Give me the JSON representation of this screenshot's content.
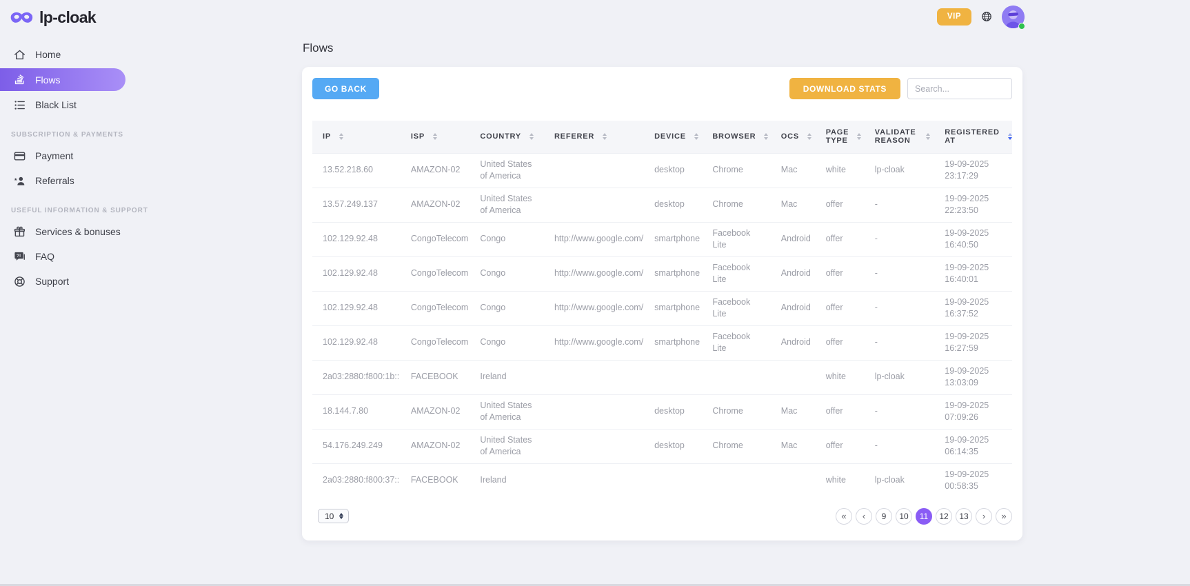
{
  "brand": {
    "name": "lp-cloak"
  },
  "topbar": {
    "vip_label": "VIP"
  },
  "sidebar": {
    "sections": [
      {
        "header": null,
        "items": [
          {
            "label": "Home",
            "icon": "home",
            "active": false
          },
          {
            "label": "Flows",
            "icon": "flows",
            "active": true
          },
          {
            "label": "Black List",
            "icon": "black-list",
            "active": false
          }
        ]
      },
      {
        "header": "SUBSCRIPTION & PAYMENTS",
        "items": [
          {
            "label": "Payment",
            "icon": "payment",
            "active": false
          },
          {
            "label": "Referrals",
            "icon": "referrals",
            "active": false
          }
        ]
      },
      {
        "header": "USEFUL INFORMATION & SUPPORT",
        "items": [
          {
            "label": "Services & bonuses",
            "icon": "gift",
            "active": false
          },
          {
            "label": "FAQ",
            "icon": "faq",
            "active": false
          },
          {
            "label": "Support",
            "icon": "support",
            "active": false
          }
        ]
      }
    ]
  },
  "page": {
    "title": "Flows"
  },
  "toolbar": {
    "go_back_label": "GO BACK",
    "download_stats_label": "DOWNLOAD STATS",
    "search_placeholder": "Search..."
  },
  "table": {
    "columns": [
      {
        "key": "ip",
        "label": "IP",
        "sortable": true
      },
      {
        "key": "isp",
        "label": "ISP",
        "sortable": true
      },
      {
        "key": "country",
        "label": "COUNTRY",
        "sortable": true
      },
      {
        "key": "referer",
        "label": "REFERER",
        "sortable": true
      },
      {
        "key": "device",
        "label": "DEVICE",
        "sortable": true
      },
      {
        "key": "browser",
        "label": "BROWSER",
        "sortable": true
      },
      {
        "key": "ocs",
        "label": "OCS",
        "sortable": true
      },
      {
        "key": "page_type",
        "label": "PAGE TYPE",
        "sortable": true
      },
      {
        "key": "validate_reason",
        "label": "VALIDATE REASON",
        "sortable": true
      },
      {
        "key": "registered_at",
        "label": "REGISTERED AT",
        "sortable": true,
        "sort": "desc"
      }
    ],
    "rows": [
      {
        "ip": "13.52.218.60",
        "isp": "AMAZON-02",
        "country": "United States of America",
        "referer": "",
        "device": "desktop",
        "browser": "Chrome",
        "ocs": "Mac",
        "page_type": "white",
        "validate_reason": "lp-cloak",
        "registered_at": "19-09-2025 23:17:29"
      },
      {
        "ip": "13.57.249.137",
        "isp": "AMAZON-02",
        "country": "United States of America",
        "referer": "",
        "device": "desktop",
        "browser": "Chrome",
        "ocs": "Mac",
        "page_type": "offer",
        "validate_reason": "-",
        "registered_at": "19-09-2025 22:23:50"
      },
      {
        "ip": "102.129.92.48",
        "isp": "CongoTelecom",
        "country": "Congo",
        "referer": "http://www.google.com/",
        "device": "smartphone",
        "browser": "Facebook Lite",
        "ocs": "Android",
        "page_type": "offer",
        "validate_reason": "-",
        "registered_at": "19-09-2025 16:40:50"
      },
      {
        "ip": "102.129.92.48",
        "isp": "CongoTelecom",
        "country": "Congo",
        "referer": "http://www.google.com/",
        "device": "smartphone",
        "browser": "Facebook Lite",
        "ocs": "Android",
        "page_type": "offer",
        "validate_reason": "-",
        "registered_at": "19-09-2025 16:40:01"
      },
      {
        "ip": "102.129.92.48",
        "isp": "CongoTelecom",
        "country": "Congo",
        "referer": "http://www.google.com/",
        "device": "smartphone",
        "browser": "Facebook Lite",
        "ocs": "Android",
        "page_type": "offer",
        "validate_reason": "-",
        "registered_at": "19-09-2025 16:37:52"
      },
      {
        "ip": "102.129.92.48",
        "isp": "CongoTelecom",
        "country": "Congo",
        "referer": "http://www.google.com/",
        "device": "smartphone",
        "browser": "Facebook Lite",
        "ocs": "Android",
        "page_type": "offer",
        "validate_reason": "-",
        "registered_at": "19-09-2025 16:27:59"
      },
      {
        "ip": "2a03:2880:f800:1b::",
        "isp": "FACEBOOK",
        "country": "Ireland",
        "referer": "",
        "device": "",
        "browser": "",
        "ocs": "",
        "page_type": "white",
        "validate_reason": "lp-cloak",
        "registered_at": "19-09-2025 13:03:09"
      },
      {
        "ip": "18.144.7.80",
        "isp": "AMAZON-02",
        "country": "United States of America",
        "referer": "",
        "device": "desktop",
        "browser": "Chrome",
        "ocs": "Mac",
        "page_type": "offer",
        "validate_reason": "-",
        "registered_at": "19-09-2025 07:09:26"
      },
      {
        "ip": "54.176.249.249",
        "isp": "AMAZON-02",
        "country": "United States of America",
        "referer": "",
        "device": "desktop",
        "browser": "Chrome",
        "ocs": "Mac",
        "page_type": "offer",
        "validate_reason": "-",
        "registered_at": "19-09-2025 06:14:35"
      },
      {
        "ip": "2a03:2880:f800:37::",
        "isp": "FACEBOOK",
        "country": "Ireland",
        "referer": "",
        "device": "",
        "browser": "",
        "ocs": "",
        "page_type": "white",
        "validate_reason": "lp-cloak",
        "registered_at": "19-09-2025 00:58:35"
      }
    ]
  },
  "pagination": {
    "page_size": "10",
    "first": "«",
    "prev": "‹",
    "pages": [
      "9",
      "10",
      "11",
      "12",
      "13"
    ],
    "active_page": "11",
    "next": "›",
    "last": "»"
  },
  "colors": {
    "accent_purple": "#8a5cf5",
    "accent_blue": "#55a9f4",
    "accent_amber": "#f0b341",
    "active_sort_blue": "#3f63f3",
    "online_green": "#2fc14e"
  }
}
